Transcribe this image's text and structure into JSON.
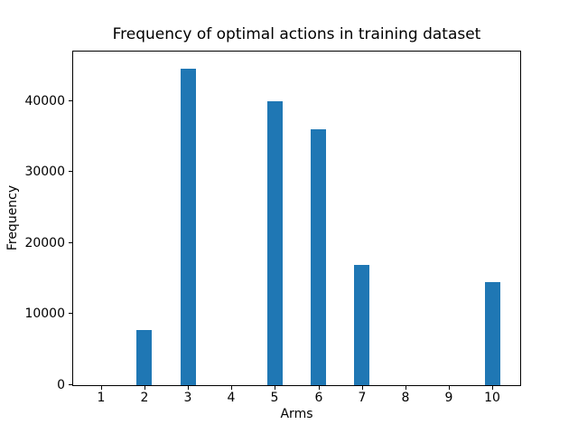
{
  "chart_data": {
    "type": "bar",
    "title": "Frequency of optimal actions in training dataset",
    "xlabel": "Arms",
    "ylabel": "Frequency",
    "categories": [
      "1",
      "2",
      "3",
      "4",
      "5",
      "6",
      "7",
      "8",
      "9",
      "10"
    ],
    "values": [
      0,
      7800,
      44600,
      0,
      40000,
      36000,
      17000,
      0,
      0,
      14500
    ],
    "yticks": [
      0,
      10000,
      20000,
      30000,
      40000
    ],
    "ylim": [
      0,
      47000
    ],
    "xlim": [
      0.36,
      10.64
    ],
    "bar_width_units": 0.35,
    "bar_color": "#1f77b4",
    "axis_color": "#000000",
    "background_color": "#ffffff",
    "grid": false,
    "legend": "none"
  }
}
